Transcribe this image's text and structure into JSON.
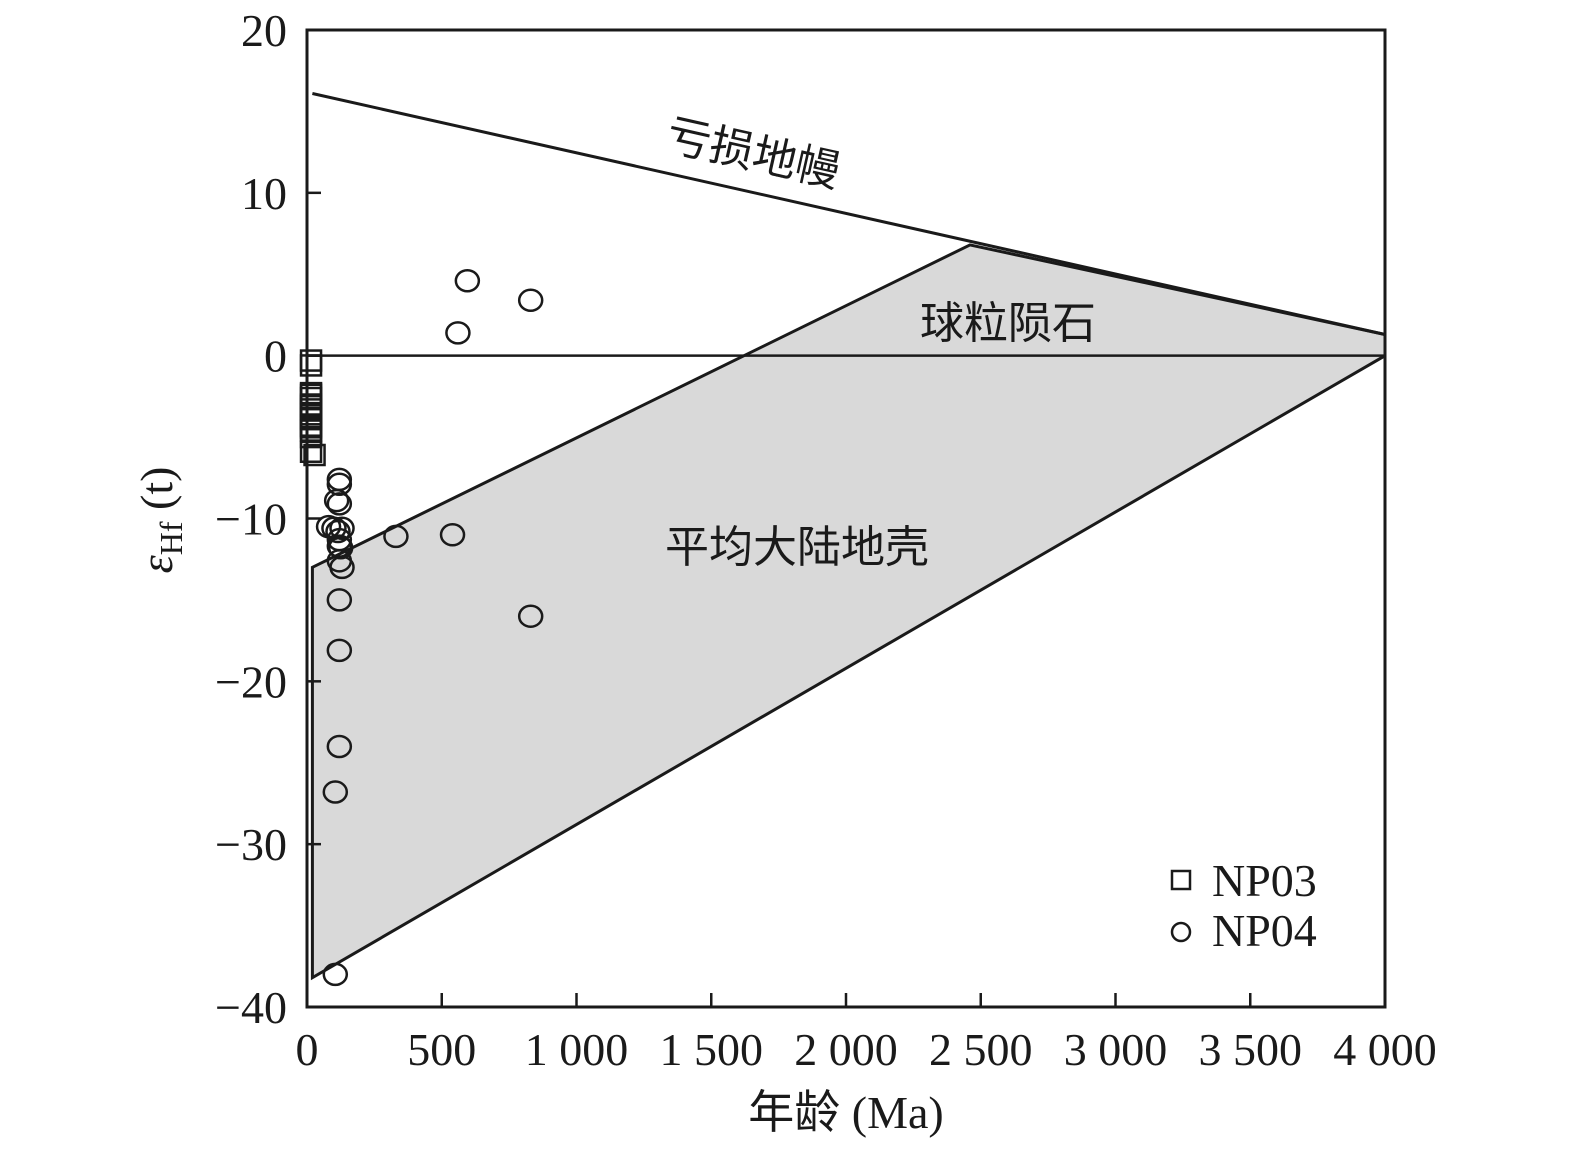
{
  "chart_data": {
    "type": "scatter",
    "xlabel": "年龄 (Ma)",
    "ylabel": "εHf (t)",
    "ylabel_main": "ε",
    "ylabel_sub": "Hf",
    "ylabel_tail": " (t)",
    "xlim": [
      0,
      4000
    ],
    "ylim": [
      -40,
      20
    ],
    "x_ticks": [
      0,
      500,
      1000,
      1500,
      2000,
      2500,
      3000,
      3500,
      4000
    ],
    "x_tick_labels": [
      "0",
      "500",
      "1 000",
      "1 500",
      "2 000",
      "2 500",
      "3 000",
      "3 500",
      "4 000"
    ],
    "y_ticks": [
      20,
      10,
      0,
      -10,
      -20,
      -30,
      -40
    ],
    "y_tick_labels": [
      "20",
      "10",
      "0",
      "−10",
      "−20",
      "−30",
      "−40"
    ],
    "grid": false,
    "legend_position": "bottom-right",
    "reference_lines": {
      "depleted_mantle": {
        "label": "亏损地幔",
        "x": [
          20,
          4000
        ],
        "y": [
          16.1,
          1.3
        ]
      },
      "chondrite": {
        "label": "球粒陨石",
        "y": 0
      }
    },
    "crust_region": {
      "label": "平均大陆地壳",
      "x": [
        20,
        2460,
        4000,
        4000,
        20
      ],
      "y": [
        -13,
        6.8,
        1.3,
        0,
        -38.2
      ]
    },
    "series": [
      {
        "name": "NP03",
        "marker": "square",
        "x": [
          15,
          15,
          15,
          15,
          15,
          15,
          15,
          15,
          15,
          15,
          15,
          15,
          15,
          15,
          15,
          15,
          28
        ],
        "y": [
          -0.3,
          -0.6,
          -2.3,
          -2.6,
          -3.0,
          -3.3,
          -3.6,
          -3.9,
          -4.3,
          -4.6,
          -5.0,
          -2.4,
          -3.1,
          -3.8,
          -4.4,
          -5.9,
          -6.1
        ]
      },
      {
        "name": "NP04",
        "marker": "circle",
        "x": [
          595,
          830,
          560,
          120,
          120,
          110,
          120,
          130,
          80,
          100,
          115,
          120,
          120,
          125,
          120,
          130,
          330,
          540,
          830,
          120,
          120,
          120,
          105,
          105
        ],
        "y": [
          4.6,
          3.4,
          1.4,
          -7.6,
          -7.9,
          -8.9,
          -9.1,
          -10.6,
          -10.5,
          -10.6,
          -10.8,
          -11.3,
          -11.7,
          -11.8,
          -12.6,
          -13.0,
          -11.1,
          -11.0,
          -16.0,
          -15.0,
          -18.1,
          -24.0,
          -26.8,
          -38.0
        ]
      }
    ]
  }
}
